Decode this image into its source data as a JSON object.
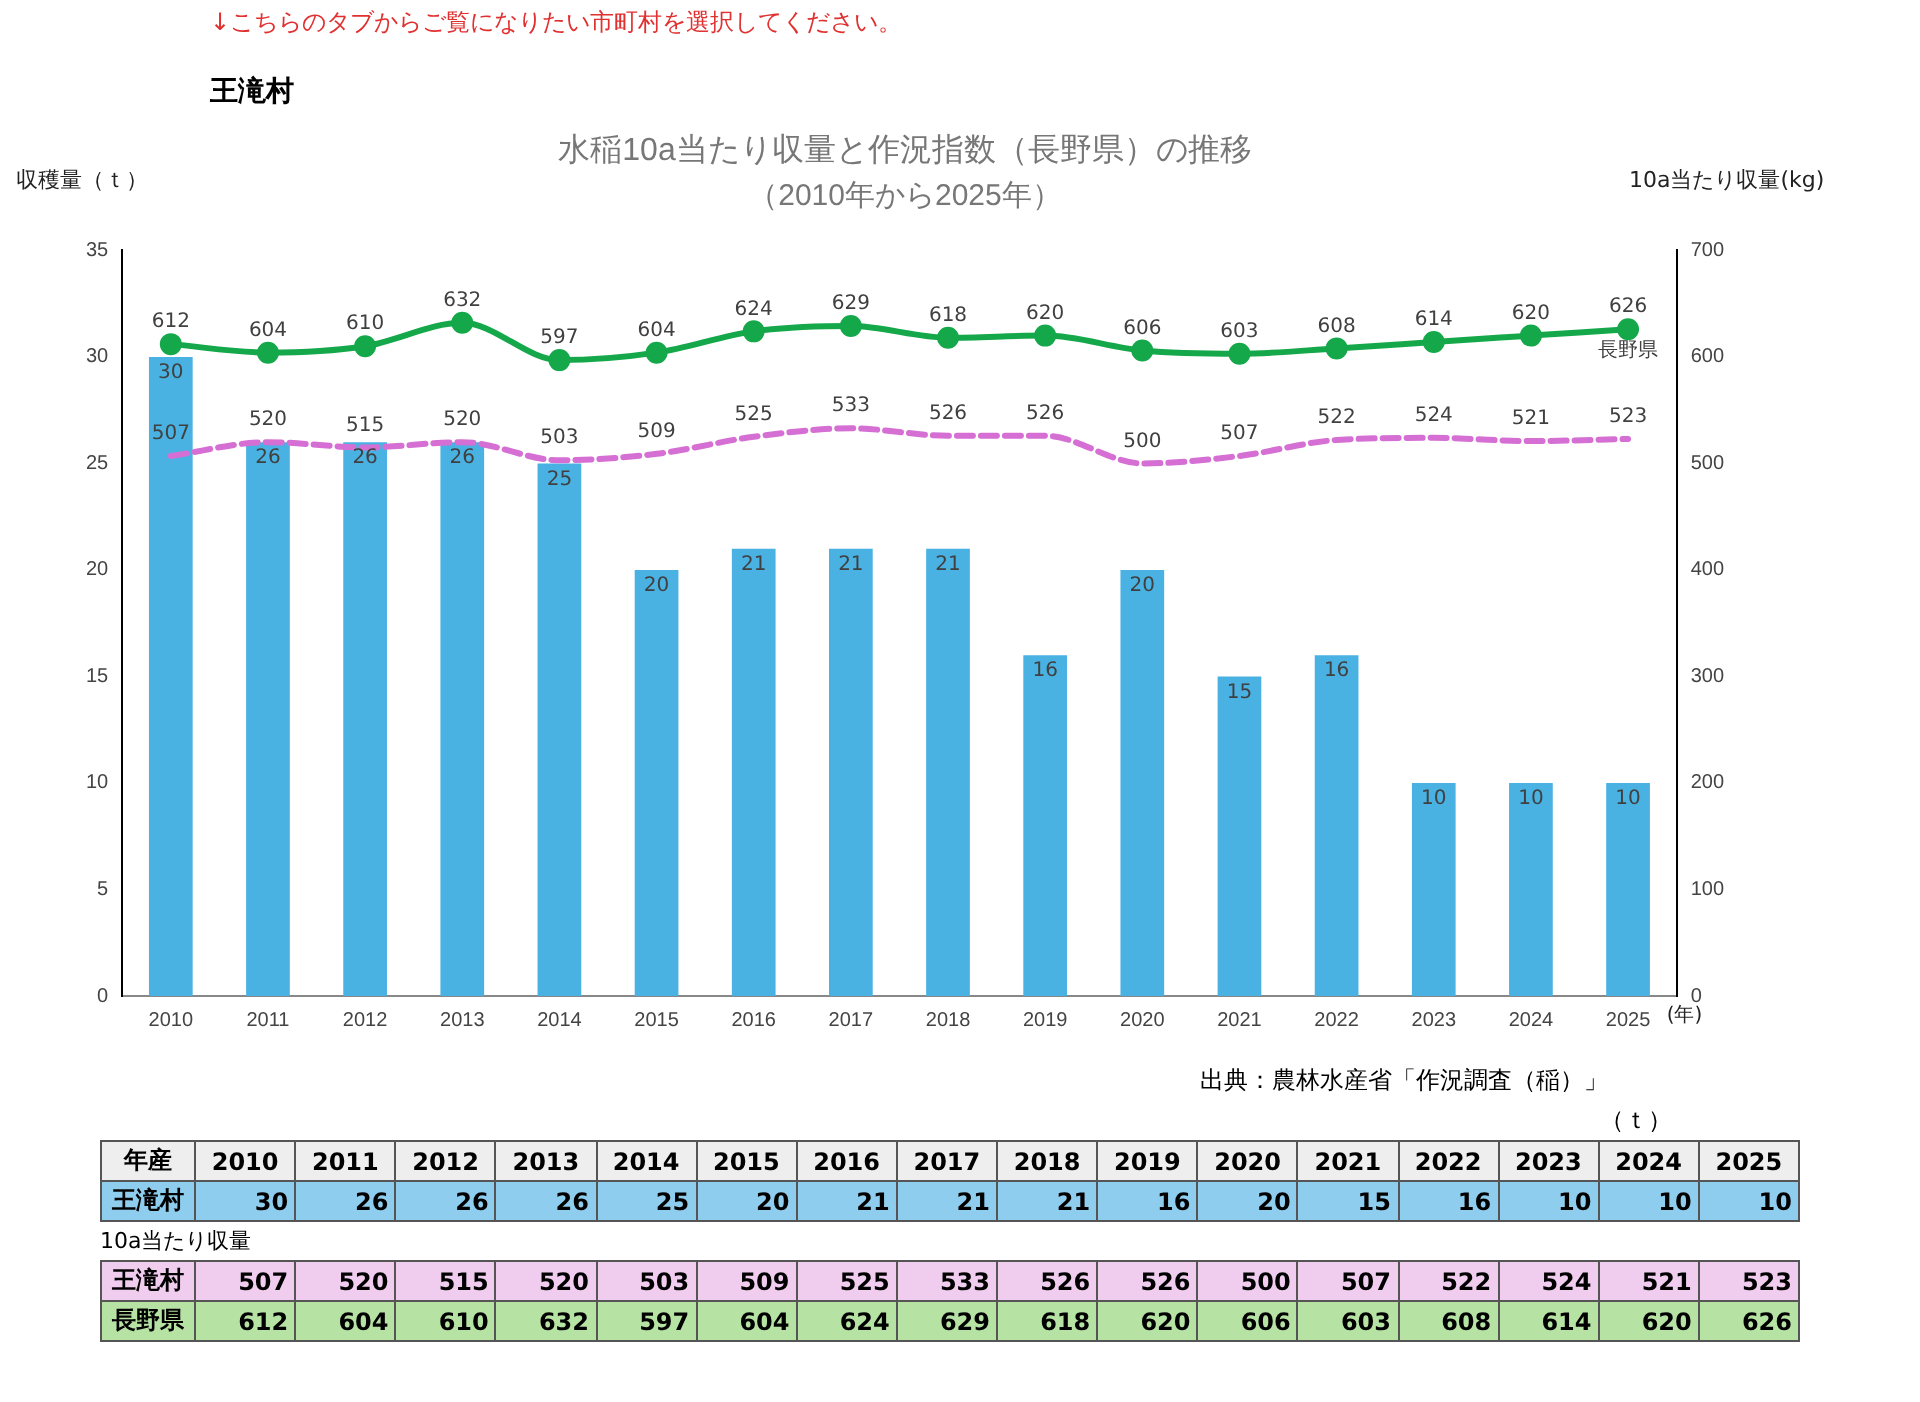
{
  "chart_data": [
    {
      "type": "bar",
      "title": "水稲10a当たり収量と作況指数（長野県）の推移",
      "subtitle": "（2010年から2025年）",
      "xlabel": "(年)",
      "ylabel": "収穫量（ｔ）",
      "y2label": "10a当たり収量(kg)",
      "annotations": [
        "↓こちらのタブからご覧になりたい市町村を選択してください。",
        "王滝村",
        "出典：農林水産省「作況調査（稲）」"
      ],
      "categories": [
        "2010",
        "2011",
        "2012",
        "2013",
        "2014",
        "2015",
        "2016",
        "2017",
        "2018",
        "2019",
        "2020",
        "2021",
        "2022",
        "2023",
        "2024",
        "2025"
      ],
      "series": [
        {
          "type": "bar",
          "color": "#49b2e3",
          "values": [
            30,
            26,
            26,
            26,
            25,
            20,
            21,
            21,
            21,
            16,
            20,
            15,
            16,
            10,
            10,
            10
          ]
        },
        {
          "type": "line",
          "axis": "y2",
          "color": "#d56fd3",
          "line_style": "dashed",
          "marker": "none",
          "values": [
            507,
            520,
            515,
            520,
            503,
            509,
            525,
            533,
            526,
            526,
            500,
            507,
            522,
            524,
            521,
            523
          ]
        },
        {
          "name": "長野県",
          "type": "line",
          "axis": "y2",
          "color": "#15a84a",
          "line_style": "solid",
          "marker": "circle",
          "values": [
            612,
            604,
            610,
            632,
            597,
            604,
            624,
            629,
            618,
            620,
            606,
            603,
            608,
            614,
            620,
            626
          ]
        }
      ],
      "ylim": [
        0,
        35
      ],
      "yticks": [
        0,
        5,
        10,
        15,
        20,
        25,
        30,
        35
      ],
      "y2lim": [
        0,
        700
      ],
      "y2ticks": [
        0,
        100,
        200,
        300,
        400,
        500,
        600,
        700
      ],
      "grid": false,
      "legend": false,
      "data_labels": true
    },
    {
      "type": "heatmap",
      "annotations": [
        "（ｔ）",
        "年産"
      ],
      "categories": [
        "2010",
        "2011",
        "2012",
        "2013",
        "2014",
        "2015",
        "2016",
        "2017",
        "2018",
        "2019",
        "2020",
        "2021",
        "2022",
        "2023",
        "2024",
        "2025"
      ],
      "y_categories": [
        "王滝村"
      ],
      "data_labels": true,
      "cells": [
        [
          30,
          26,
          26,
          26,
          25,
          20,
          21,
          21,
          21,
          16,
          20,
          15,
          16,
          10,
          10,
          10
        ]
      ]
    },
    {
      "type": "heatmap",
      "annotations": [
        "10a当たり収量"
      ],
      "categories": [
        null,
        null,
        null,
        null,
        null,
        null,
        null,
        null,
        null,
        null,
        null,
        null,
        null,
        null,
        null,
        null
      ],
      "y_categories": [
        "王滝村",
        "長野県"
      ],
      "data_labels": true,
      "cells": [
        [
          507,
          520,
          515,
          520,
          503,
          509,
          525,
          533,
          526,
          526,
          500,
          507,
          522,
          524,
          521,
          523
        ],
        [
          612,
          604,
          610,
          632,
          597,
          604,
          624,
          629,
          618,
          620,
          606,
          603,
          608,
          614,
          620,
          626
        ]
      ]
    }
  ]
}
